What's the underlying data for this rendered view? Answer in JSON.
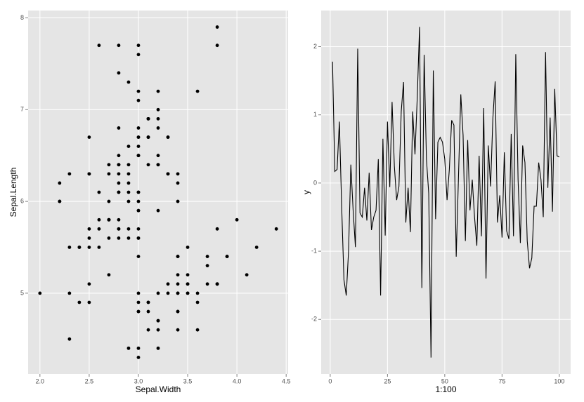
{
  "chart_data": [
    {
      "type": "scatter",
      "x_label": "Sepal.Width",
      "y_label": "Sepal.Length",
      "color": "#000000",
      "grid": true,
      "x": [
        3.5,
        3.0,
        3.2,
        3.1,
        3.6,
        3.9,
        3.4,
        3.4,
        2.9,
        3.1,
        3.7,
        3.4,
        3.0,
        3.0,
        4.0,
        4.4,
        3.9,
        3.5,
        3.8,
        3.8,
        3.4,
        3.7,
        3.6,
        3.3,
        3.4,
        3.0,
        3.4,
        3.5,
        3.4,
        3.2,
        3.1,
        3.4,
        4.1,
        4.2,
        3.1,
        3.2,
        3.5,
        3.6,
        3.0,
        3.4,
        3.5,
        2.3,
        3.2,
        3.5,
        3.8,
        3.0,
        3.8,
        3.2,
        3.7,
        3.3,
        3.2,
        3.2,
        3.1,
        2.3,
        2.8,
        2.8,
        3.3,
        2.4,
        2.9,
        2.7,
        2.0,
        3.0,
        2.2,
        2.9,
        2.9,
        3.1,
        3.0,
        2.7,
        2.2,
        2.5,
        3.2,
        2.8,
        2.5,
        2.8,
        2.9,
        3.0,
        2.8,
        3.0,
        2.9,
        2.6,
        2.4,
        2.4,
        2.7,
        2.7,
        3.0,
        3.4,
        3.1,
        2.3,
        3.0,
        2.5,
        2.6,
        3.0,
        2.6,
        2.3,
        2.7,
        3.0,
        2.9,
        2.9,
        2.5,
        2.8,
        3.3,
        2.7,
        3.0,
        2.9,
        3.0,
        3.0,
        2.5,
        2.9,
        2.5,
        3.6,
        3.2,
        2.7,
        3.0,
        2.5,
        2.8,
        3.2,
        3.0,
        3.8,
        2.6,
        2.2,
        3.2,
        2.8,
        2.8,
        2.7,
        3.3,
        3.2,
        2.8,
        3.0,
        2.8,
        3.0,
        2.8,
        3.8,
        2.8,
        2.8,
        2.6,
        3.0,
        3.4,
        3.1,
        3.0,
        3.1,
        3.1,
        3.1,
        2.7,
        3.2,
        3.3,
        3.0,
        2.5,
        3.0,
        3.4,
        3.0
      ],
      "values": [
        5.1,
        4.9,
        4.7,
        4.6,
        5.0,
        5.4,
        4.6,
        5.0,
        4.4,
        4.9,
        5.4,
        4.8,
        4.8,
        4.3,
        5.8,
        5.7,
        5.4,
        5.1,
        5.7,
        5.1,
        5.4,
        5.1,
        4.6,
        5.1,
        4.8,
        5.0,
        5.0,
        5.2,
        5.2,
        4.7,
        4.8,
        5.4,
        5.2,
        5.5,
        4.9,
        5.0,
        5.5,
        4.9,
        4.4,
        5.1,
        5.0,
        4.5,
        4.4,
        5.0,
        5.1,
        4.8,
        5.1,
        4.6,
        5.3,
        5.0,
        7.0,
        6.4,
        6.9,
        5.5,
        6.5,
        5.7,
        6.3,
        4.9,
        6.6,
        5.2,
        5.0,
        5.9,
        6.0,
        6.1,
        5.6,
        6.7,
        5.6,
        5.8,
        6.2,
        5.6,
        5.9,
        6.1,
        6.3,
        6.1,
        6.4,
        6.6,
        6.8,
        6.7,
        6.0,
        5.7,
        5.5,
        5.5,
        5.8,
        6.0,
        5.4,
        6.0,
        6.7,
        6.3,
        5.6,
        5.5,
        5.5,
        6.1,
        5.8,
        5.0,
        5.6,
        5.7,
        5.7,
        6.2,
        5.1,
        5.7,
        6.3,
        5.8,
        7.1,
        6.3,
        6.5,
        7.6,
        4.9,
        7.3,
        6.7,
        7.2,
        6.5,
        6.4,
        6.8,
        5.7,
        5.8,
        6.4,
        6.5,
        7.7,
        7.7,
        6.0,
        6.9,
        5.6,
        7.7,
        6.3,
        6.7,
        7.2,
        6.2,
        6.1,
        6.4,
        7.2,
        7.4,
        7.9,
        6.4,
        6.3,
        6.1,
        7.7,
        6.3,
        6.4,
        6.0,
        6.9,
        6.7,
        6.9,
        5.8,
        6.8,
        6.7,
        6.7,
        6.3,
        6.5,
        6.2,
        5.9
      ],
      "xlim": [
        1.88,
        4.52
      ],
      "ylim": [
        4.12,
        8.08
      ],
      "xticks": [
        {
          "value": 2,
          "label": "2.0"
        },
        2.5,
        {
          "value": 3,
          "label": "3.0"
        },
        3.5,
        {
          "value": 4,
          "label": "4.0"
        },
        4.5
      ],
      "yticks": [
        5,
        6,
        7,
        8
      ]
    },
    {
      "type": "line",
      "x_label": "1:100",
      "y_label": "y",
      "color": "#000000",
      "grid": true,
      "x": [
        1,
        2,
        3,
        4,
        5,
        6,
        7,
        8,
        9,
        10,
        11,
        12,
        13,
        14,
        15,
        16,
        17,
        18,
        19,
        20,
        21,
        22,
        23,
        24,
        25,
        26,
        27,
        28,
        29,
        30,
        31,
        32,
        33,
        34,
        35,
        36,
        37,
        38,
        39,
        40,
        41,
        42,
        43,
        44,
        45,
        46,
        47,
        48,
        49,
        50,
        51,
        52,
        53,
        54,
        55,
        56,
        57,
        58,
        59,
        60,
        61,
        62,
        63,
        64,
        65,
        66,
        67,
        68,
        69,
        70,
        71,
        72,
        73,
        74,
        75,
        76,
        77,
        78,
        79,
        80,
        81,
        82,
        83,
        84,
        85,
        86,
        87,
        88,
        89,
        90,
        91,
        92,
        93,
        94,
        95,
        96,
        97,
        98,
        99,
        100
      ],
      "values": [
        1.78,
        0.17,
        0.2,
        0.9,
        -0.35,
        -1.42,
        -1.65,
        -1.0,
        0.27,
        -0.4,
        -0.94,
        1.97,
        -0.44,
        -0.5,
        -0.07,
        -0.55,
        0.15,
        -0.69,
        -0.5,
        -0.4,
        0.35,
        -1.65,
        0.65,
        -0.77,
        0.9,
        -0.06,
        1.19,
        0.25,
        -0.25,
        -0.05,
        1.05,
        1.48,
        -0.58,
        -0.07,
        -0.72,
        1.05,
        0.42,
        1.26,
        2.29,
        -1.54,
        1.88,
        0.35,
        -0.15,
        -2.56,
        1.65,
        -0.53,
        0.6,
        0.67,
        0.6,
        0.35,
        -0.25,
        0.2,
        0.92,
        0.85,
        -1.08,
        0.1,
        1.3,
        0.7,
        -0.85,
        0.63,
        -0.4,
        0.05,
        -0.5,
        -0.92,
        0.4,
        -0.78,
        1.1,
        -1.4,
        0.55,
        -0.05,
        0.95,
        1.49,
        -0.58,
        -0.18,
        -0.8,
        0.45,
        -0.7,
        -0.82,
        0.72,
        -0.78,
        1.89,
        0.05,
        -0.88,
        0.55,
        0.3,
        -0.85,
        -1.25,
        -1.1,
        -0.34,
        -0.34,
        0.3,
        0.05,
        -0.5,
        1.92,
        -0.07,
        0.96,
        -0.42,
        1.38,
        0.4,
        0.38
      ],
      "xlim": [
        -3.95,
        104.95
      ],
      "ylim": [
        -2.8,
        2.53
      ],
      "xticks": [
        0,
        25,
        50,
        75,
        100
      ],
      "yticks": [
        -2,
        -1,
        0,
        1,
        2
      ]
    }
  ]
}
